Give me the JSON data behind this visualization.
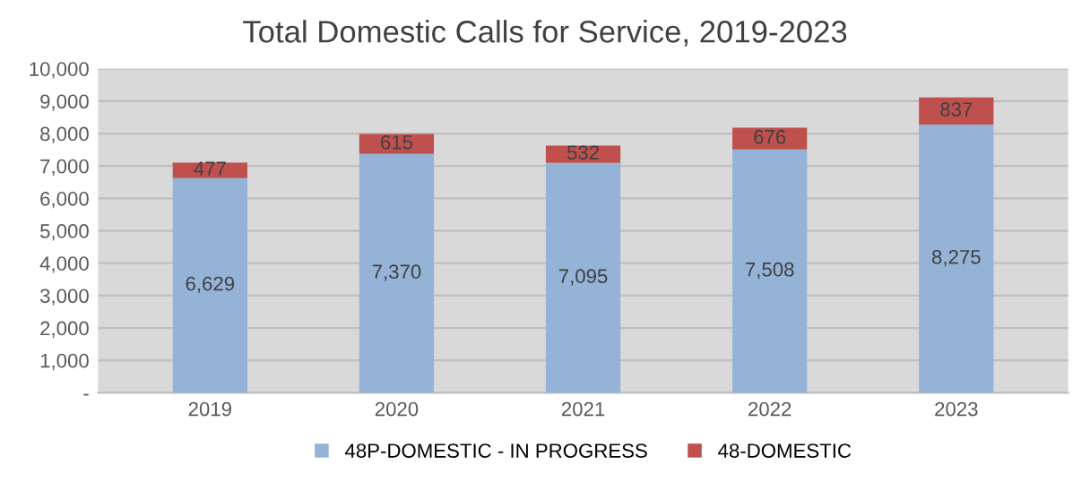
{
  "chart_data": {
    "type": "bar",
    "title": "Total Domestic Calls for Service, 2019-2023",
    "stacked": true,
    "categories": [
      "2019",
      "2020",
      "2021",
      "2022",
      "2023"
    ],
    "series": [
      {
        "name": "48P-DOMESTIC - IN PROGRESS",
        "color": "#95b3d7",
        "values": [
          6629,
          7370,
          7095,
          7508,
          8275
        ],
        "value_labels": [
          "6,629",
          "7,370",
          "7,095",
          "7,508",
          "8,275"
        ]
      },
      {
        "name": "48-DOMESTIC",
        "color": "#c0504d",
        "values": [
          477,
          615,
          532,
          676,
          837
        ],
        "value_labels": [
          "477",
          "615",
          "532",
          "676",
          "837"
        ]
      }
    ],
    "ylim": [
      0,
      10000
    ],
    "yticks": [
      {
        "value": 0,
        "label": "-"
      },
      {
        "value": 1000,
        "label": "1,000"
      },
      {
        "value": 2000,
        "label": "2,000"
      },
      {
        "value": 3000,
        "label": "3,000"
      },
      {
        "value": 4000,
        "label": "4,000"
      },
      {
        "value": 5000,
        "label": "5,000"
      },
      {
        "value": 6000,
        "label": "6,000"
      },
      {
        "value": 7000,
        "label": "7,000"
      },
      {
        "value": 8000,
        "label": "8,000"
      },
      {
        "value": 9000,
        "label": "9,000"
      },
      {
        "value": 10000,
        "label": "10,000"
      }
    ],
    "grid": "y",
    "legend": "bottom"
  }
}
